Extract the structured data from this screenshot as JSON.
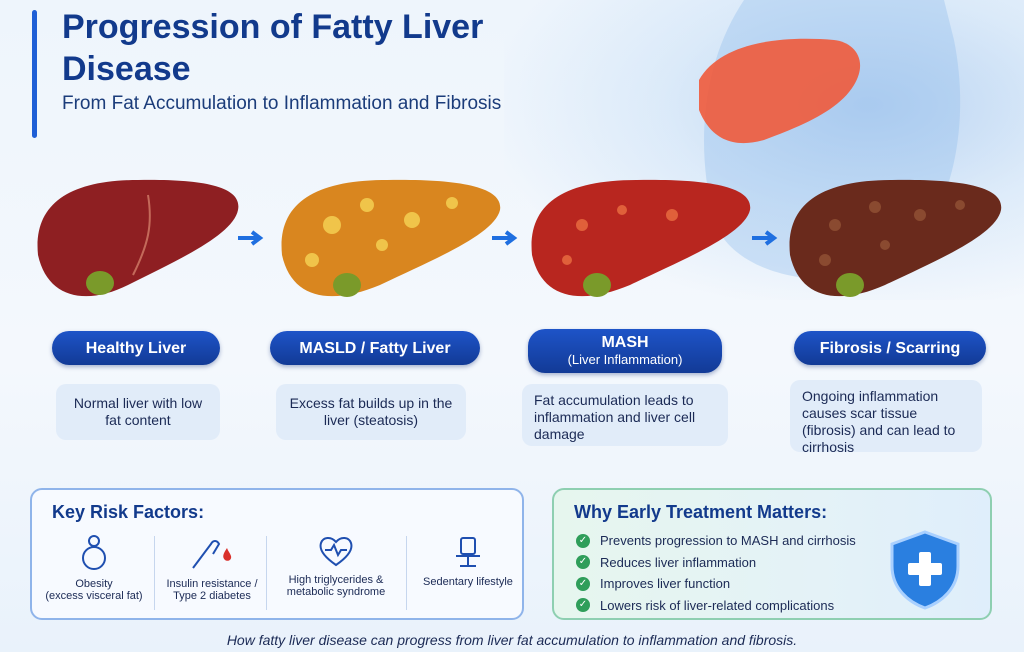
{
  "header": {
    "title": "Progression of Fatty Liver Disease",
    "subtitle": "From Fat Accumulation to Inflammation and Fibrosis"
  },
  "stages": [
    {
      "label": "Healthy Liver",
      "sublabel": "",
      "description": "Normal liver with low fat content",
      "color": "#8e1f22"
    },
    {
      "label": "MASLD / Fatty Liver",
      "sublabel": "",
      "description": "Excess fat builds up in the liver (steatosis)",
      "color": "#d9861f"
    },
    {
      "label": "MASH",
      "sublabel": "(Liver Inflammation)",
      "description": "Fat accumulation leads to inflammation and liver cell damage",
      "color": "#b8261f"
    },
    {
      "label": "Fibrosis / Scarring",
      "sublabel": "",
      "description": "Ongoing inflammation causes scar tissue (fibrosis) and can lead to cirrhosis",
      "color": "#6a2a1c"
    }
  ],
  "risk_factors": {
    "title": "Key Risk Factors:",
    "items": [
      {
        "label": "Obesity",
        "detail": "(excess visceral fat)",
        "icon": "person-obesity-icon"
      },
      {
        "label": "Insulin resistance / Type 2 diabetes",
        "detail": "",
        "icon": "finger-blood-drop-icon"
      },
      {
        "label": "High triglycerides & metabolic syndrome",
        "detail": "",
        "icon": "heart-pulse-icon"
      },
      {
        "label": "Sedentary lifestyle",
        "detail": "",
        "icon": "chair-icon"
      }
    ]
  },
  "why_treatment": {
    "title": "Why Early Treatment Matters:",
    "items": [
      "Prevents progression to MASH and cirrhosis",
      "Reduces liver inflammation",
      "Improves liver function",
      "Lowers risk of liver-related complications"
    ],
    "icon": "shield-cross-icon"
  },
  "caption": "How fatty liver disease can progress from liver fat accumulation to inflammation and fibrosis.",
  "colors": {
    "accent": "#1f5fd6",
    "navy": "#123a8c",
    "check": "#2f9e5a"
  }
}
